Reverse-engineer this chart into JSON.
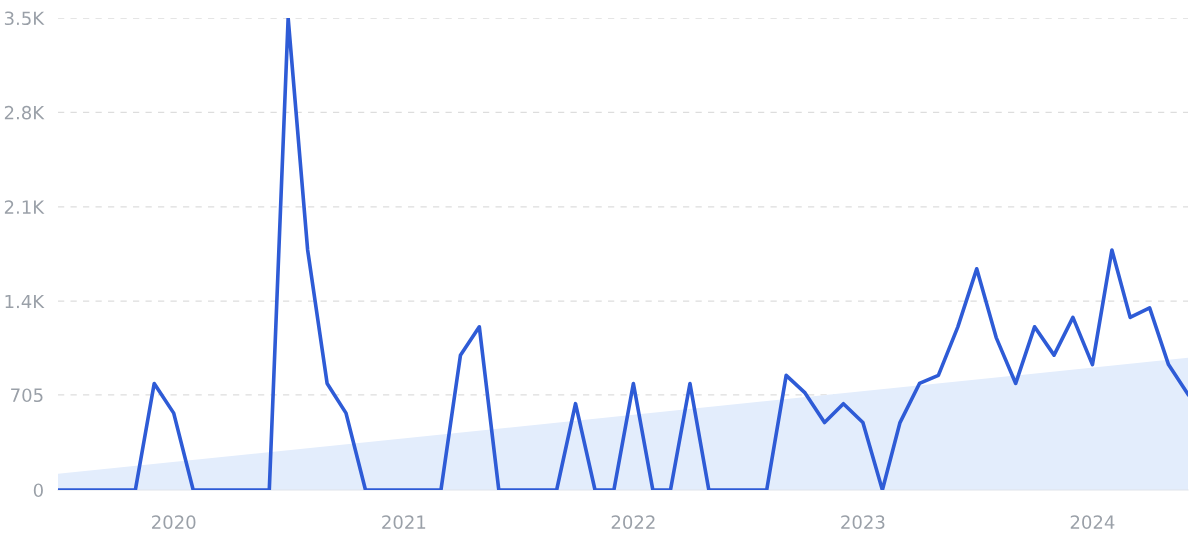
{
  "chart_data": {
    "type": "line",
    "x": [
      "2019-07",
      "2019-08",
      "2019-09",
      "2019-10",
      "2019-11",
      "2019-12",
      "2020-01",
      "2020-02",
      "2020-03",
      "2020-04",
      "2020-05",
      "2020-06",
      "2020-07",
      "2020-08",
      "2020-09",
      "2020-10",
      "2020-11",
      "2020-12",
      "2021-01",
      "2021-02",
      "2021-03",
      "2021-04",
      "2021-05",
      "2021-06",
      "2021-07",
      "2021-08",
      "2021-09",
      "2021-10",
      "2021-11",
      "2021-12",
      "2022-01",
      "2022-02",
      "2022-03",
      "2022-04",
      "2022-05",
      "2022-06",
      "2022-07",
      "2022-08",
      "2022-09",
      "2022-10",
      "2022-11",
      "2022-12",
      "2023-01",
      "2023-02",
      "2023-03",
      "2023-04",
      "2023-05",
      "2023-06",
      "2023-07",
      "2023-08",
      "2023-09",
      "2023-10",
      "2023-11",
      "2023-12",
      "2024-01",
      "2024-02",
      "2024-03",
      "2024-04",
      "2024-05",
      "2024-06"
    ],
    "series": [
      {
        "type": "area",
        "color": "#e3edfc",
        "x": [
          "2019-07",
          "2024-06"
        ],
        "values": [
          120,
          980
        ]
      },
      {
        "type": "line",
        "color": "#2e5bd6",
        "values": [
          0,
          0,
          0,
          0,
          0,
          790,
          570,
          0,
          0,
          0,
          0,
          0,
          3500,
          1780,
          790,
          570,
          0,
          0,
          0,
          0,
          0,
          1000,
          1210,
          0,
          0,
          0,
          0,
          640,
          0,
          0,
          790,
          0,
          0,
          790,
          0,
          0,
          0,
          0,
          850,
          720,
          500,
          640,
          500,
          0,
          500,
          790,
          850,
          1210,
          1640,
          1130,
          790,
          1210,
          1000,
          1280,
          930,
          1780,
          1280,
          1350,
          930,
          710
        ]
      }
    ],
    "xlim": [
      "2019-07",
      "2024-06"
    ],
    "xticks": [
      {
        "value": "2020-01",
        "label": "2020"
      },
      {
        "value": "2021-01",
        "label": "2021"
      },
      {
        "value": "2022-01",
        "label": "2022"
      },
      {
        "value": "2023-01",
        "label": "2023"
      },
      {
        "value": "2024-01",
        "label": "2024"
      }
    ],
    "ylim": [
      0,
      3500
    ],
    "yticks": [
      0,
      705,
      {
        "value": 1400,
        "label": "1.4K"
      },
      {
        "value": 2100,
        "label": "2.1K"
      },
      {
        "value": 2800,
        "label": "2.8K"
      },
      {
        "value": 3500,
        "label": "3.5K"
      }
    ],
    "grid": "y",
    "line_style": "solid",
    "marker": "none"
  }
}
